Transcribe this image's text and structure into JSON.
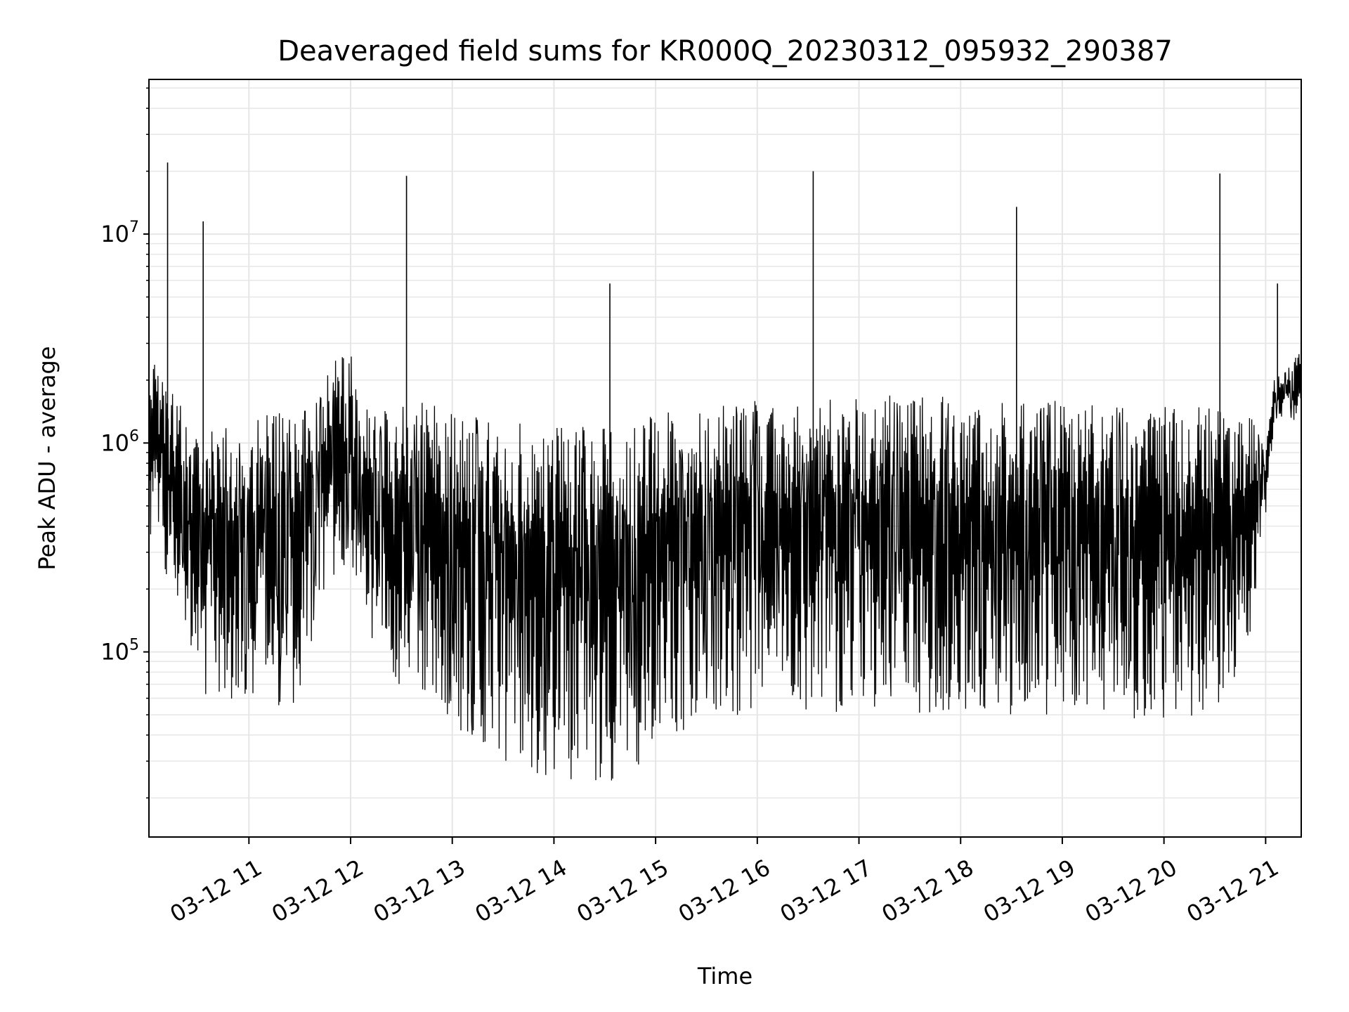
{
  "chart_data": {
    "type": "line",
    "title": "Deaveraged field sums for KR000Q_20230312_095932_290387",
    "xlabel": "Time",
    "ylabel": "Peak ADU - average",
    "yscale": "log",
    "xlim": [
      "2023-03-12 10:01",
      "2023-03-12 21:21"
    ],
    "ylim": [
      13000,
      55000000
    ],
    "grid": true,
    "line_color": "#000000",
    "x_ticks": [
      {
        "value": "2023-03-12 11:00",
        "label": "03-12 11"
      },
      {
        "value": "2023-03-12 12:00",
        "label": "03-12 12"
      },
      {
        "value": "2023-03-12 13:00",
        "label": "03-12 13"
      },
      {
        "value": "2023-03-12 14:00",
        "label": "03-12 14"
      },
      {
        "value": "2023-03-12 15:00",
        "label": "03-12 15"
      },
      {
        "value": "2023-03-12 16:00",
        "label": "03-12 16"
      },
      {
        "value": "2023-03-12 17:00",
        "label": "03-12 17"
      },
      {
        "value": "2023-03-12 18:00",
        "label": "03-12 18"
      },
      {
        "value": "2023-03-12 19:00",
        "label": "03-12 19"
      },
      {
        "value": "2023-03-12 20:00",
        "label": "03-12 20"
      },
      {
        "value": "2023-03-12 21:00",
        "label": "03-12 21"
      }
    ],
    "y_ticks": [
      {
        "value": 100000,
        "base": "10",
        "exp": "5"
      },
      {
        "value": 1000000,
        "base": "10",
        "exp": "6"
      },
      {
        "value": 10000000,
        "base": "10",
        "exp": "7"
      }
    ],
    "envelope_points": [
      {
        "x": "2023-03-12 10:01",
        "lo": 300000,
        "hi": 3000000
      },
      {
        "x": "2023-03-12 10:10",
        "lo": 250000,
        "hi": 2000000
      },
      {
        "x": "2023-03-12 10:20",
        "lo": 150000,
        "hi": 1500000
      },
      {
        "x": "2023-03-12 10:30",
        "lo": 60000,
        "hi": 1300000
      },
      {
        "x": "2023-03-12 10:45",
        "lo": 55000,
        "hi": 1200000
      },
      {
        "x": "2023-03-12 11:00",
        "lo": 55000,
        "hi": 1300000
      },
      {
        "x": "2023-03-12 11:30",
        "lo": 55000,
        "hi": 1500000
      },
      {
        "x": "2023-03-12 11:50",
        "lo": 200000,
        "hi": 2500000
      },
      {
        "x": "2023-03-12 12:00",
        "lo": 300000,
        "hi": 2800000
      },
      {
        "x": "2023-03-12 12:05",
        "lo": 150000,
        "hi": 1500000
      },
      {
        "x": "2023-03-12 12:30",
        "lo": 60000,
        "hi": 1500000
      },
      {
        "x": "2023-03-12 12:50",
        "lo": 55000,
        "hi": 1600000
      },
      {
        "x": "2023-03-12 13:00",
        "lo": 45000,
        "hi": 1400000
      },
      {
        "x": "2023-03-12 13:30",
        "lo": 28000,
        "hi": 1300000
      },
      {
        "x": "2023-03-12 14:00",
        "lo": 25000,
        "hi": 1200000
      },
      {
        "x": "2023-03-12 14:20",
        "lo": 22000,
        "hi": 1200000
      },
      {
        "x": "2023-03-12 14:45",
        "lo": 25000,
        "hi": 1300000
      },
      {
        "x": "2023-03-12 15:00",
        "lo": 35000,
        "hi": 1400000
      },
      {
        "x": "2023-03-12 15:30",
        "lo": 45000,
        "hi": 1500000
      },
      {
        "x": "2023-03-12 16:00",
        "lo": 50000,
        "hi": 1600000
      },
      {
        "x": "2023-03-12 16:30",
        "lo": 50000,
        "hi": 1600000
      },
      {
        "x": "2023-03-12 17:00",
        "lo": 50000,
        "hi": 1700000
      },
      {
        "x": "2023-03-12 17:30",
        "lo": 50000,
        "hi": 1700000
      },
      {
        "x": "2023-03-12 18:00",
        "lo": 50000,
        "hi": 1650000
      },
      {
        "x": "2023-03-12 18:30",
        "lo": 50000,
        "hi": 1600000
      },
      {
        "x": "2023-03-12 19:00",
        "lo": 50000,
        "hi": 1600000
      },
      {
        "x": "2023-03-12 19:30",
        "lo": 48000,
        "hi": 1550000
      },
      {
        "x": "2023-03-12 20:00",
        "lo": 48000,
        "hi": 1500000
      },
      {
        "x": "2023-03-12 20:30",
        "lo": 50000,
        "hi": 1500000
      },
      {
        "x": "2023-03-12 20:50",
        "lo": 100000,
        "hi": 1400000
      },
      {
        "x": "2023-03-12 21:00",
        "lo": 450000,
        "hi": 1000000
      },
      {
        "x": "2023-03-12 21:05",
        "lo": 1200000,
        "hi": 2000000
      },
      {
        "x": "2023-03-12 21:21",
        "lo": 1300000,
        "hi": 2800000
      }
    ],
    "spikes": [
      {
        "x": "2023-03-12 10:12",
        "y": 22000000
      },
      {
        "x": "2023-03-12 10:33",
        "y": 11500000
      },
      {
        "x": "2023-03-12 12:33",
        "y": 19000000
      },
      {
        "x": "2023-03-12 14:33",
        "y": 5800000
      },
      {
        "x": "2023-03-12 16:33",
        "y": 20000000
      },
      {
        "x": "2023-03-12 18:33",
        "y": 13500000
      },
      {
        "x": "2023-03-12 20:33",
        "y": 19500000
      },
      {
        "x": "2023-03-12 21:07",
        "y": 5800000
      }
    ]
  }
}
